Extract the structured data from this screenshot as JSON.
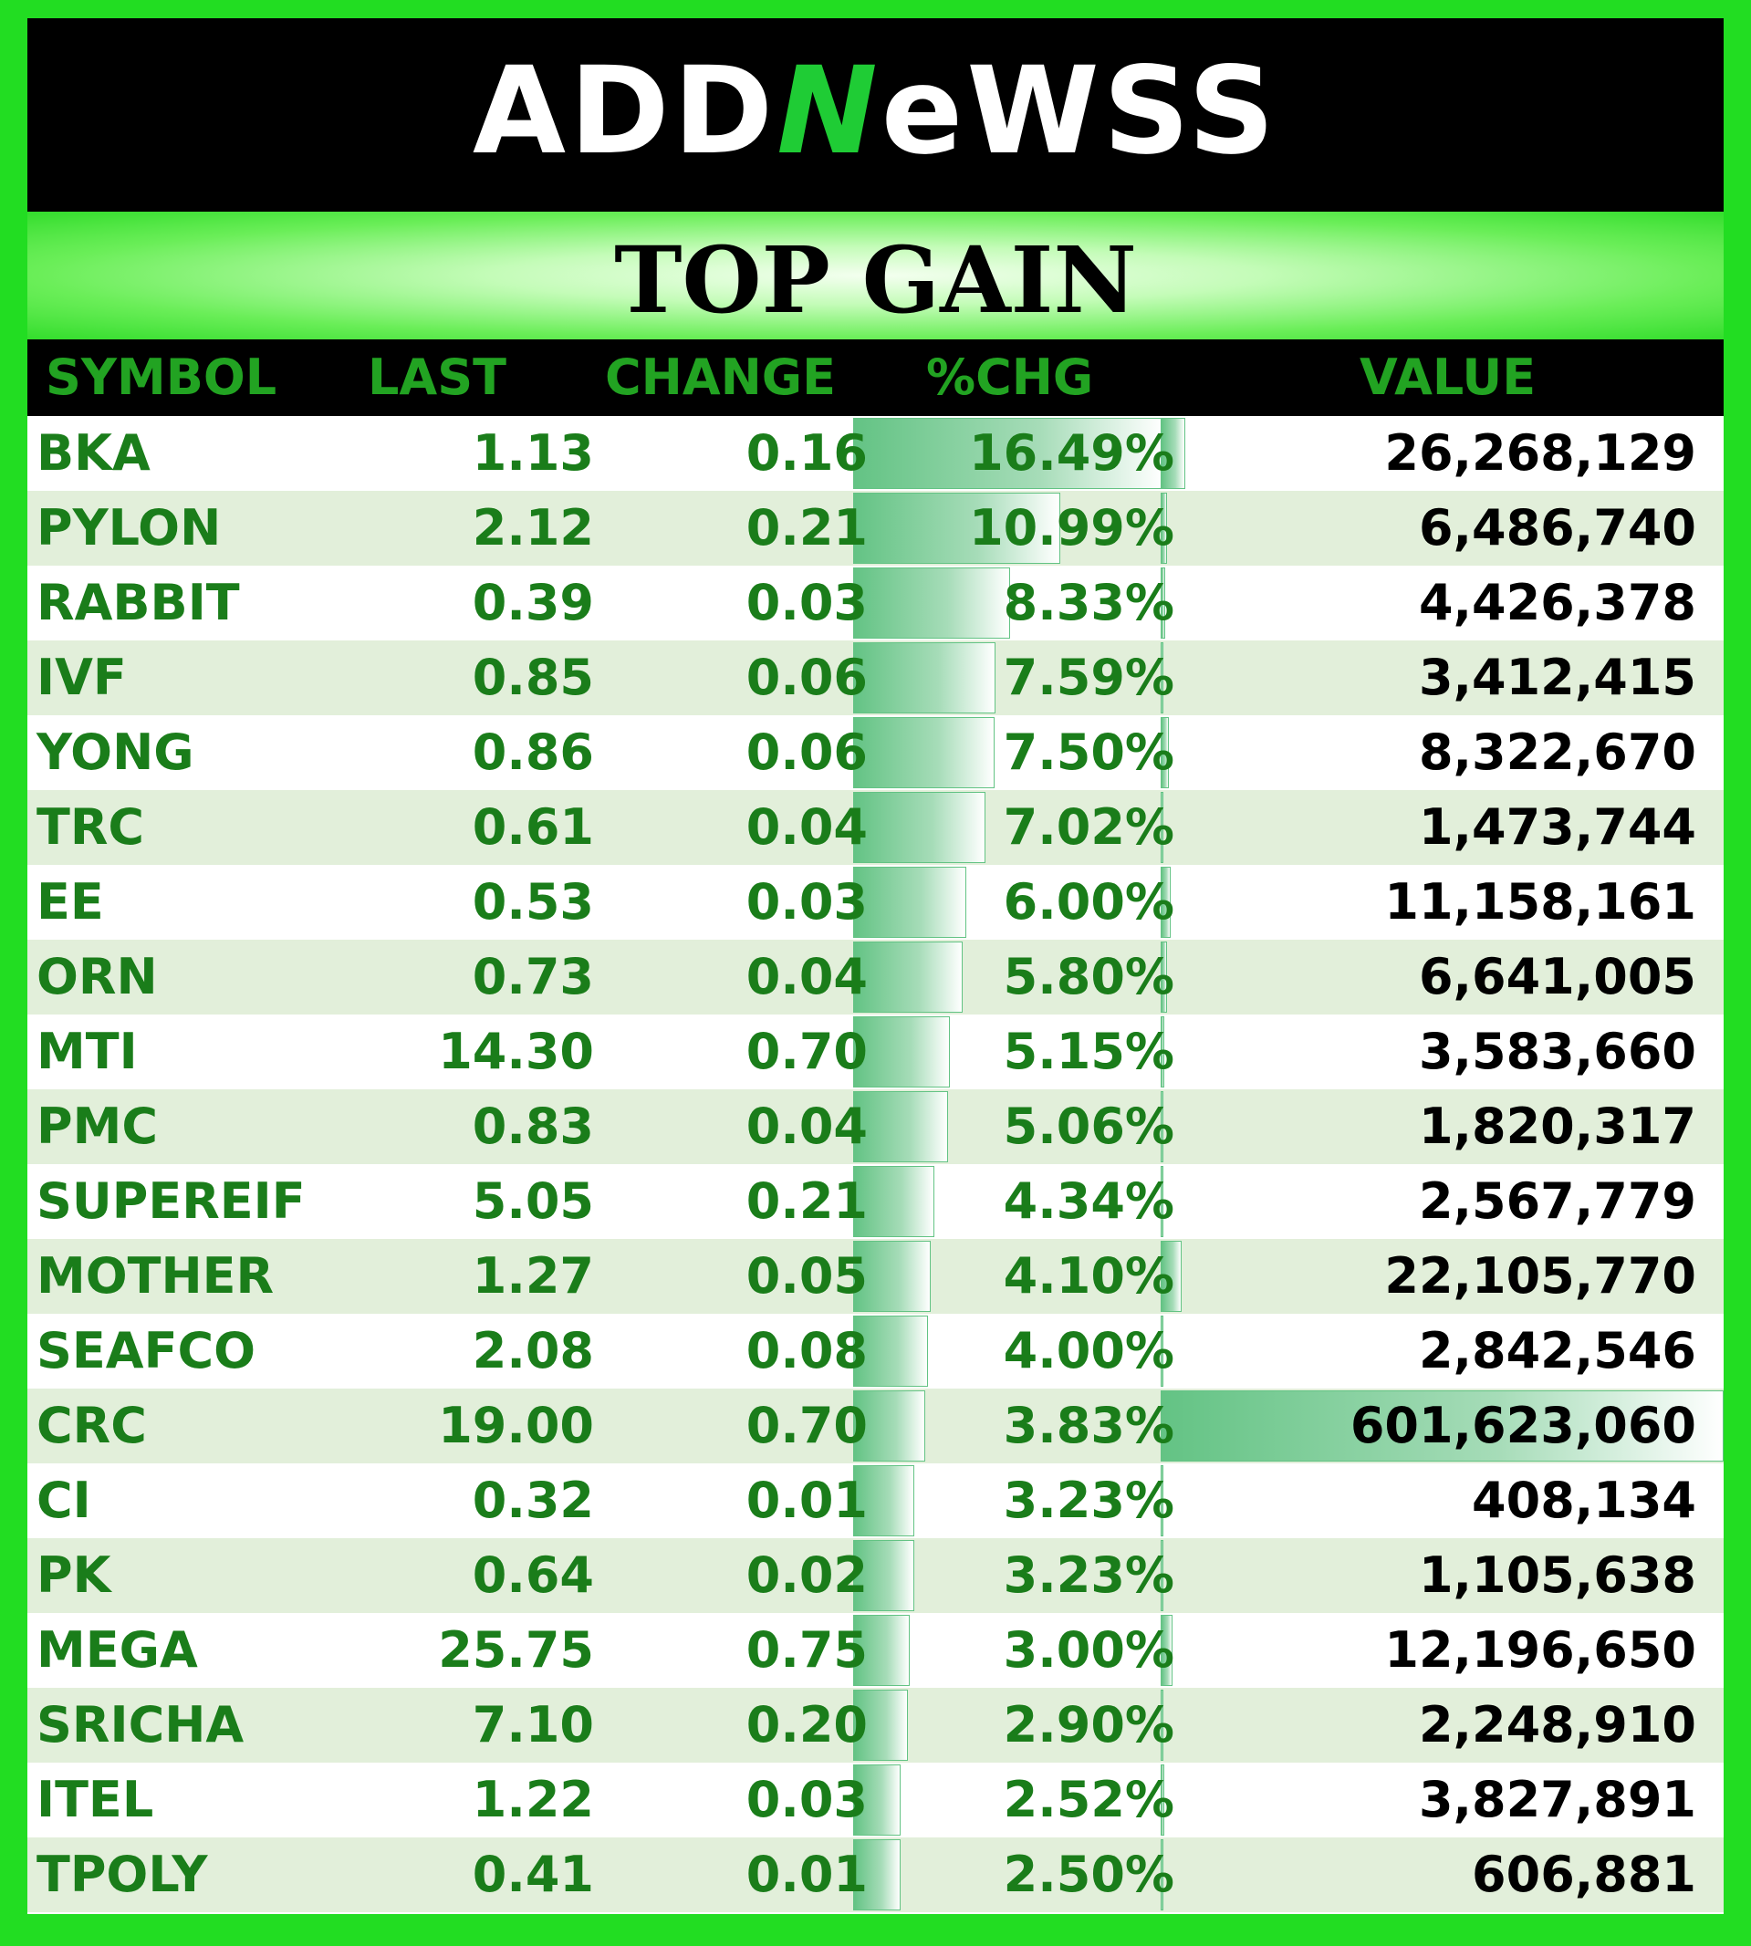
{
  "header": {
    "logo_text_left": "ADD",
    "logo_text_n": "N",
    "logo_text_right": "eWSS",
    "title": "TOP GAIN"
  },
  "columns": [
    "SYMBOL",
    "LAST",
    "CHANGE",
    "%CHG",
    "VALUE"
  ],
  "colors": {
    "symbol_text": "#1a7d1a",
    "bar": "#63c384",
    "alt_row": "#e2efda",
    "frame": "#22dd22"
  },
  "chart_data": {
    "type": "table",
    "columns": [
      "SYMBOL",
      "LAST",
      "CHANGE",
      "%CHG",
      "VALUE"
    ],
    "pct_max": 16.49,
    "value_max": 601623060,
    "rows": [
      {
        "symbol": "BKA",
        "last": "1.13",
        "change": "0.16",
        "pct": "16.49%",
        "pct_num": 16.49,
        "value": "26,268,129",
        "value_num": 26268129
      },
      {
        "symbol": "PYLON",
        "last": "2.12",
        "change": "0.21",
        "pct": "10.99%",
        "pct_num": 10.99,
        "value": "6,486,740",
        "value_num": 6486740
      },
      {
        "symbol": "RABBIT",
        "last": "0.39",
        "change": "0.03",
        "pct": "8.33%",
        "pct_num": 8.33,
        "value": "4,426,378",
        "value_num": 4426378
      },
      {
        "symbol": "IVF",
        "last": "0.85",
        "change": "0.06",
        "pct": "7.59%",
        "pct_num": 7.59,
        "value": "3,412,415",
        "value_num": 3412415
      },
      {
        "symbol": "YONG",
        "last": "0.86",
        "change": "0.06",
        "pct": "7.50%",
        "pct_num": 7.5,
        "value": "8,322,670",
        "value_num": 8322670
      },
      {
        "symbol": "TRC",
        "last": "0.61",
        "change": "0.04",
        "pct": "7.02%",
        "pct_num": 7.02,
        "value": "1,473,744",
        "value_num": 1473744
      },
      {
        "symbol": "EE",
        "last": "0.53",
        "change": "0.03",
        "pct": "6.00%",
        "pct_num": 6.0,
        "value": "11,158,161",
        "value_num": 11158161
      },
      {
        "symbol": "ORN",
        "last": "0.73",
        "change": "0.04",
        "pct": "5.80%",
        "pct_num": 5.8,
        "value": "6,641,005",
        "value_num": 6641005
      },
      {
        "symbol": "MTI",
        "last": "14.30",
        "change": "0.70",
        "pct": "5.15%",
        "pct_num": 5.15,
        "value": "3,583,660",
        "value_num": 3583660
      },
      {
        "symbol": "PMC",
        "last": "0.83",
        "change": "0.04",
        "pct": "5.06%",
        "pct_num": 5.06,
        "value": "1,820,317",
        "value_num": 1820317
      },
      {
        "symbol": "SUPEREIF",
        "last": "5.05",
        "change": "0.21",
        "pct": "4.34%",
        "pct_num": 4.34,
        "value": "2,567,779",
        "value_num": 2567779
      },
      {
        "symbol": "MOTHER",
        "last": "1.27",
        "change": "0.05",
        "pct": "4.10%",
        "pct_num": 4.1,
        "value": "22,105,770",
        "value_num": 22105770
      },
      {
        "symbol": "SEAFCO",
        "last": "2.08",
        "change": "0.08",
        "pct": "4.00%",
        "pct_num": 4.0,
        "value": "2,842,546",
        "value_num": 2842546
      },
      {
        "symbol": "CRC",
        "last": "19.00",
        "change": "0.70",
        "pct": "3.83%",
        "pct_num": 3.83,
        "value": "601,623,060",
        "value_num": 601623060
      },
      {
        "symbol": "CI",
        "last": "0.32",
        "change": "0.01",
        "pct": "3.23%",
        "pct_num": 3.23,
        "value": "408,134",
        "value_num": 408134
      },
      {
        "symbol": "PK",
        "last": "0.64",
        "change": "0.02",
        "pct": "3.23%",
        "pct_num": 3.23,
        "value": "1,105,638",
        "value_num": 1105638
      },
      {
        "symbol": "MEGA",
        "last": "25.75",
        "change": "0.75",
        "pct": "3.00%",
        "pct_num": 3.0,
        "value": "12,196,650",
        "value_num": 12196650
      },
      {
        "symbol": "SRICHA",
        "last": "7.10",
        "change": "0.20",
        "pct": "2.90%",
        "pct_num": 2.9,
        "value": "2,248,910",
        "value_num": 2248910
      },
      {
        "symbol": "ITEL",
        "last": "1.22",
        "change": "0.03",
        "pct": "2.52%",
        "pct_num": 2.52,
        "value": "3,827,891",
        "value_num": 3827891
      },
      {
        "symbol": "TPOLY",
        "last": "0.41",
        "change": "0.01",
        "pct": "2.50%",
        "pct_num": 2.5,
        "value": "606,881",
        "value_num": 606881
      }
    ]
  }
}
